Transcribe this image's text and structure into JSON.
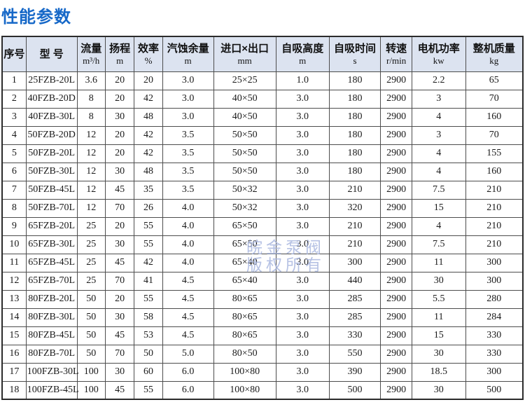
{
  "page_title": "性能参数",
  "watermark": {
    "line1": "皖金泵阀",
    "line2": "版权所有"
  },
  "colors": {
    "title_blue": "#1668c8",
    "header_background": "#dce3f0",
    "grid_line": "#4d4d4d",
    "outer_border": "#2b2b2b",
    "watermark_blue": "#aab8e0",
    "cell_text": "#1a1a1a"
  },
  "table": {
    "columns": [
      {
        "label": "序号",
        "unit": ""
      },
      {
        "label": "型 号",
        "unit": ""
      },
      {
        "label": "流量",
        "unit": "m³/h"
      },
      {
        "label": "扬程",
        "unit": "m"
      },
      {
        "label": "效率",
        "unit": "%"
      },
      {
        "label": "汽蚀余量",
        "unit": "m"
      },
      {
        "label": "进口×出口",
        "unit": "mm"
      },
      {
        "label": "自吸高度",
        "unit": "m"
      },
      {
        "label": "自吸时间",
        "unit": "s"
      },
      {
        "label": "转速",
        "unit": "r/min"
      },
      {
        "label": "电机功率",
        "unit": "kw"
      },
      {
        "label": "整机质量",
        "unit": "kg"
      }
    ],
    "rows": [
      [
        "1",
        "25FZB-20L",
        "3.6",
        "20",
        "20",
        "3.0",
        "25×25",
        "1.0",
        "180",
        "2900",
        "2.2",
        "65"
      ],
      [
        "2",
        "40FZB-20D",
        "8",
        "20",
        "42",
        "3.0",
        "40×50",
        "3.0",
        "180",
        "2900",
        "3",
        "70"
      ],
      [
        "3",
        "40FZB-30L",
        "8",
        "30",
        "48",
        "3.0",
        "40×50",
        "3.0",
        "180",
        "2900",
        "4",
        "160"
      ],
      [
        "4",
        "50FZB-20D",
        "12",
        "20",
        "42",
        "3.5",
        "50×50",
        "3.0",
        "180",
        "2900",
        "3",
        "70"
      ],
      [
        "5",
        "50FZB-20L",
        "12",
        "20",
        "42",
        "3.5",
        "50×50",
        "3.0",
        "180",
        "2900",
        "4",
        "155"
      ],
      [
        "6",
        "50FZB-30L",
        "12",
        "30",
        "48",
        "3.5",
        "50×50",
        "3.0",
        "180",
        "2900",
        "4",
        "160"
      ],
      [
        "7",
        "50FZB-45L",
        "12",
        "45",
        "35",
        "3.5",
        "50×32",
        "3.0",
        "210",
        "2900",
        "7.5",
        "210"
      ],
      [
        "8",
        "50FZB-70L",
        "12",
        "70",
        "26",
        "4.0",
        "50×32",
        "3.0",
        "320",
        "2900",
        "15",
        "210"
      ],
      [
        "9",
        "65FZB-20L",
        "25",
        "20",
        "55",
        "4.0",
        "65×50",
        "3.0",
        "210",
        "2900",
        "4",
        "210"
      ],
      [
        "10",
        "65FZB-30L",
        "25",
        "30",
        "55",
        "4.0",
        "65×50",
        "3.0",
        "210",
        "2900",
        "7.5",
        "210"
      ],
      [
        "11",
        "65FZB-45L",
        "25",
        "45",
        "42",
        "4.0",
        "65×40",
        "3.0",
        "300",
        "2900",
        "11",
        "300"
      ],
      [
        "12",
        "65FZB-70L",
        "25",
        "70",
        "41",
        "4.5",
        "65×40",
        "3.0",
        "440",
        "2900",
        "30",
        "300"
      ],
      [
        "13",
        "80FZB-20L",
        "50",
        "20",
        "55",
        "4.5",
        "80×65",
        "3.0",
        "285",
        "2900",
        "5.5",
        "280"
      ],
      [
        "14",
        "80FZB-30L",
        "50",
        "30",
        "58",
        "4.5",
        "80×65",
        "3.0",
        "285",
        "2900",
        "11",
        "284"
      ],
      [
        "15",
        "80FZB-45L",
        "50",
        "45",
        "53",
        "4.5",
        "80×65",
        "3.0",
        "330",
        "2900",
        "15",
        "330"
      ],
      [
        "16",
        "80FZB-70L",
        "50",
        "70",
        "50",
        "5.0",
        "80×50",
        "3.0",
        "550",
        "2900",
        "30",
        "330"
      ],
      [
        "17",
        "100FZB-30L",
        "100",
        "30",
        "60",
        "6.0",
        "100×80",
        "3.0",
        "390",
        "2900",
        "18.5",
        "300"
      ],
      [
        "18",
        "100FZB-45L",
        "100",
        "45",
        "55",
        "6.0",
        "100×80",
        "3.0",
        "500",
        "2900",
        "30",
        "500"
      ]
    ]
  }
}
